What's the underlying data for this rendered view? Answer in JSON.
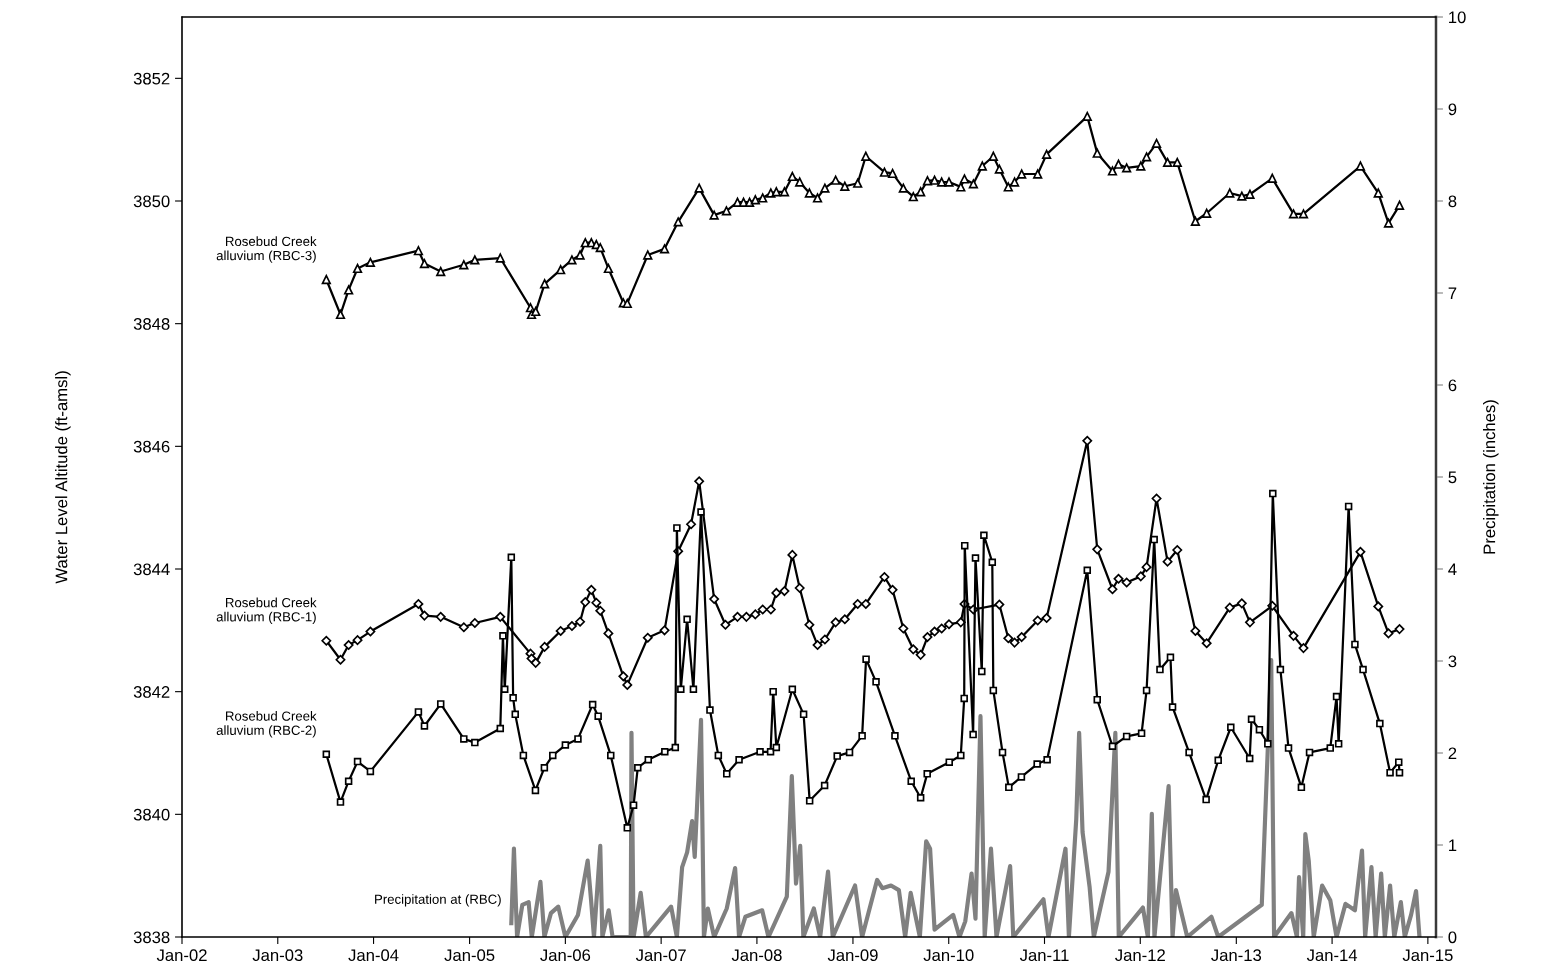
{
  "chart_data": {
    "type": "line",
    "ylabel": "Water Level Altitude (ft-amsl)",
    "y2label": "Precipitation (inches)",
    "xlim": [
      "2002-01-01",
      "2015-02-01"
    ],
    "xticks": [
      {
        "value": "2002-01-01",
        "label": "Jan-02"
      },
      {
        "value": "2003-01-01",
        "label": "Jan-03"
      },
      {
        "value": "2004-01-01",
        "label": "Jan-04"
      },
      {
        "value": "2005-01-01",
        "label": "Jan-05"
      },
      {
        "value": "2006-01-01",
        "label": "Jan-06"
      },
      {
        "value": "2007-01-01",
        "label": "Jan-07"
      },
      {
        "value": "2008-01-01",
        "label": "Jan-08"
      },
      {
        "value": "2009-01-01",
        "label": "Jan-09"
      },
      {
        "value": "2010-01-01",
        "label": "Jan-10"
      },
      {
        "value": "2011-01-01",
        "label": "Jan-11"
      },
      {
        "value": "2012-01-01",
        "label": "Jan-12"
      },
      {
        "value": "2013-01-01",
        "label": "Jan-13"
      },
      {
        "value": "2014-01-01",
        "label": "Jan-14"
      },
      {
        "value": "2015-01-01",
        "label": "Jan-15"
      }
    ],
    "ylim": [
      3838,
      3853
    ],
    "yticks": [
      3838,
      3840,
      3842,
      3844,
      3846,
      3848,
      3850,
      3852
    ],
    "y2lim": [
      0,
      10
    ],
    "y2ticks": [
      0,
      1,
      2,
      3,
      4,
      5,
      6,
      7,
      8,
      9,
      10
    ],
    "grid": false,
    "legend": false,
    "line_style": "solid",
    "series": [
      {
        "name": "Rosebud Creek alluvium (RBC-3)",
        "color": "#000000",
        "marker": "triangle",
        "x": [
          "2003-07-05",
          "2003-08-28",
          "2003-09-28",
          "2003-11-01",
          "2003-12-20",
          "2004-06-20",
          "2004-07-13",
          "2004-09-13",
          "2004-12-10",
          "2005-01-21",
          "2005-04-28",
          "2005-08-21",
          "2005-08-25",
          "2005-09-10",
          "2005-10-14",
          "2005-12-14",
          "2006-01-26",
          "2006-02-26",
          "2006-03-18",
          "2006-04-10",
          "2006-04-29",
          "2006-05-14",
          "2006-06-14",
          "2006-08-10",
          "2006-08-25",
          "2006-11-11",
          "2007-01-14",
          "2007-03-07",
          "2007-05-26",
          "2007-07-22",
          "2007-09-07",
          "2007-10-19",
          "2007-11-11",
          "2007-12-04",
          "2007-12-26",
          "2008-01-23",
          "2008-02-23",
          "2008-03-15",
          "2008-04-15",
          "2008-05-15",
          "2008-06-12",
          "2008-07-19",
          "2008-08-19",
          "2008-09-16",
          "2008-10-27",
          "2008-12-01",
          "2009-01-19",
          "2009-02-19",
          "2009-05-01",
          "2009-06-01",
          "2009-07-12",
          "2009-08-19",
          "2009-09-16",
          "2009-10-12",
          "2009-11-08",
          "2009-12-05",
          "2010-01-02",
          "2010-02-16",
          "2010-03-02",
          "2010-04-05",
          "2010-05-09",
          "2010-06-20",
          "2010-07-13",
          "2010-08-16",
          "2010-09-09",
          "2010-10-06",
          "2010-12-06",
          "2011-01-09",
          "2011-06-13",
          "2011-07-21",
          "2011-09-17",
          "2011-10-10",
          "2011-11-10",
          "2012-01-03",
          "2012-01-25",
          "2012-03-03",
          "2012-04-14",
          "2012-05-21",
          "2012-07-29",
          "2012-09-10",
          "2012-12-07",
          "2013-01-22",
          "2013-02-22",
          "2013-05-18",
          "2013-08-07",
          "2013-09-14",
          "2014-04-19",
          "2014-06-26",
          "2014-08-04",
          "2014-09-15"
        ],
        "values": [
          3848.72,
          3848.15,
          3848.55,
          3848.9,
          3849.0,
          3849.19,
          3848.98,
          3848.85,
          3848.96,
          3849.04,
          3849.07,
          3848.26,
          3848.15,
          3848.2,
          3848.65,
          3848.88,
          3849.04,
          3849.12,
          3849.32,
          3849.32,
          3849.29,
          3849.24,
          3848.9,
          3848.34,
          3848.33,
          3849.12,
          3849.22,
          3849.66,
          3850.21,
          3849.77,
          3849.84,
          3849.98,
          3849.98,
          3849.98,
          3850.02,
          3850.05,
          3850.13,
          3850.15,
          3850.15,
          3850.4,
          3850.31,
          3850.13,
          3850.05,
          3850.21,
          3850.34,
          3850.24,
          3850.29,
          3850.73,
          3850.47,
          3850.45,
          3850.21,
          3850.07,
          3850.15,
          3850.33,
          3850.34,
          3850.31,
          3850.31,
          3850.23,
          3850.36,
          3850.28,
          3850.57,
          3850.73,
          3850.52,
          3850.23,
          3850.31,
          3850.44,
          3850.44,
          3850.76,
          3851.38,
          3850.78,
          3850.49,
          3850.6,
          3850.54,
          3850.57,
          3850.72,
          3850.94,
          3850.63,
          3850.63,
          3849.67,
          3849.8,
          3850.13,
          3850.08,
          3850.11,
          3850.37,
          3849.79,
          3849.79,
          3850.57,
          3850.13,
          3849.64,
          3849.93
        ]
      },
      {
        "name": "Rosebud Creek alluvium (RBC-1)",
        "color": "#000000",
        "marker": "diamond",
        "x": [
          "2003-07-05",
          "2003-08-28",
          "2003-09-28",
          "2003-11-01",
          "2003-12-20",
          "2004-06-20",
          "2004-07-13",
          "2004-09-13",
          "2004-12-10",
          "2005-01-21",
          "2005-04-28",
          "2005-08-21",
          "2005-08-25",
          "2005-09-10",
          "2005-10-14",
          "2005-12-14",
          "2006-01-26",
          "2006-02-26",
          "2006-03-18",
          "2006-04-10",
          "2006-04-29",
          "2006-05-14",
          "2006-06-14",
          "2006-08-10",
          "2006-08-25",
          "2006-11-11",
          "2007-01-14",
          "2007-03-07",
          "2007-04-25",
          "2007-05-26",
          "2007-07-22",
          "2007-09-03",
          "2007-10-19",
          "2007-11-22",
          "2007-12-26",
          "2008-01-23",
          "2008-02-23",
          "2008-03-15",
          "2008-04-15",
          "2008-05-15",
          "2008-06-12",
          "2008-07-19",
          "2008-08-19",
          "2008-09-16",
          "2008-10-27",
          "2008-12-01",
          "2009-01-19",
          "2009-02-19",
          "2009-05-01",
          "2009-06-01",
          "2009-07-12",
          "2009-08-19",
          "2009-09-16",
          "2009-10-12",
          "2009-11-08",
          "2009-12-05",
          "2010-01-02",
          "2010-02-16",
          "2010-03-02",
          "2010-04-05",
          "2010-07-13",
          "2010-08-16",
          "2010-09-09",
          "2010-10-06",
          "2010-12-06",
          "2011-01-09",
          "2011-06-13",
          "2011-07-21",
          "2011-09-17",
          "2011-10-10",
          "2011-11-10",
          "2012-01-03",
          "2012-01-25",
          "2012-03-03",
          "2012-04-14",
          "2012-05-21",
          "2012-07-29",
          "2012-09-10",
          "2012-12-07",
          "2013-01-22",
          "2013-02-22",
          "2013-05-18",
          "2013-08-07",
          "2013-09-14",
          "2014-04-19",
          "2014-06-26",
          "2014-08-04",
          "2014-09-15"
        ],
        "values": [
          3842.83,
          3842.52,
          3842.76,
          3842.84,
          3842.98,
          3843.43,
          3843.24,
          3843.22,
          3843.05,
          3843.12,
          3843.22,
          3842.62,
          3842.54,
          3842.47,
          3842.73,
          3842.99,
          3843.07,
          3843.14,
          3843.46,
          3843.66,
          3843.45,
          3843.32,
          3842.95,
          3842.25,
          3842.11,
          3842.88,
          3843.0,
          3844.29,
          3844.73,
          3845.43,
          3843.51,
          3843.09,
          3843.22,
          3843.22,
          3843.26,
          3843.34,
          3843.34,
          3843.61,
          3843.64,
          3844.23,
          3843.69,
          3843.09,
          3842.76,
          3842.85,
          3843.13,
          3843.18,
          3843.43,
          3843.43,
          3843.87,
          3843.66,
          3843.03,
          3842.69,
          3842.6,
          3842.89,
          3842.98,
          3843.03,
          3843.1,
          3843.13,
          3843.43,
          3843.34,
          3843.42,
          3842.87,
          3842.8,
          3842.89,
          3843.16,
          3843.2,
          3846.09,
          3844.32,
          3843.67,
          3843.84,
          3843.78,
          3843.88,
          3844.03,
          3845.15,
          3844.12,
          3844.31,
          3842.99,
          3842.79,
          3843.37,
          3843.44,
          3843.13,
          3843.4,
          3842.91,
          3842.71,
          3844.28,
          3843.39,
          3842.95,
          3843.02
        ]
      },
      {
        "name": "Rosebud Creek alluvium (RBC-2)",
        "color": "#000000",
        "marker": "square",
        "x": [
          "2003-07-05",
          "2003-08-28",
          "2003-09-28",
          "2003-11-01",
          "2003-12-20",
          "2004-06-20",
          "2004-07-13",
          "2004-09-13",
          "2004-12-10",
          "2005-01-21",
          "2005-04-28",
          "2005-05-08",
          "2005-05-15",
          "2005-06-09",
          "2005-06-16",
          "2005-06-24",
          "2005-07-25",
          "2005-09-09",
          "2005-10-13",
          "2005-11-14",
          "2006-01-01",
          "2006-02-18",
          "2006-04-15",
          "2006-05-06",
          "2006-06-23",
          "2006-08-25",
          "2006-09-18",
          "2006-10-04",
          "2006-11-13",
          "2007-01-15",
          "2007-02-24",
          "2007-03-02",
          "2007-03-17",
          "2007-04-10",
          "2007-05-04",
          "2007-06-02",
          "2007-07-06",
          "2007-08-07",
          "2007-09-08",
          "2007-10-25",
          "2008-01-13",
          "2008-02-22",
          "2008-03-03",
          "2008-03-15",
          "2008-05-15",
          "2008-06-27",
          "2008-07-20",
          "2008-09-15",
          "2008-11-02",
          "2008-12-19",
          "2009-02-05",
          "2009-02-20",
          "2009-03-30",
          "2009-06-10",
          "2009-08-11",
          "2009-09-16",
          "2009-10-11",
          "2010-01-03",
          "2010-02-16",
          "2010-03-01",
          "2010-03-03",
          "2010-04-04",
          "2010-04-13",
          "2010-05-07",
          "2010-05-15",
          "2010-06-16",
          "2010-06-20",
          "2010-07-25",
          "2010-08-18",
          "2010-10-05",
          "2010-12-04",
          "2011-01-11",
          "2011-06-13",
          "2011-07-21",
          "2011-09-17",
          "2011-11-10",
          "2012-01-06",
          "2012-01-25",
          "2012-02-23",
          "2012-03-16",
          "2012-04-25",
          "2012-05-03",
          "2012-07-05",
          "2012-09-08",
          "2012-10-24",
          "2012-12-11",
          "2013-02-21",
          "2013-02-28",
          "2013-03-30",
          "2013-05-01",
          "2013-05-20",
          "2013-06-18",
          "2013-07-19",
          "2013-09-06",
          "2013-10-07",
          "2013-12-25",
          "2014-01-18",
          "2014-01-26",
          "2014-03-05",
          "2014-03-29",
          "2014-04-29",
          "2014-07-02",
          "2014-08-10",
          "2014-09-12",
          "2014-09-15"
        ],
        "values": [
          3840.98,
          3840.2,
          3840.54,
          3840.86,
          3840.7,
          3841.67,
          3841.44,
          3841.8,
          3841.23,
          3841.17,
          3841.4,
          3842.91,
          3842.04,
          3844.19,
          3841.9,
          3841.63,
          3840.96,
          3840.39,
          3840.76,
          3840.96,
          3841.13,
          3841.23,
          3841.79,
          3841.6,
          3840.96,
          3839.78,
          3840.15,
          3840.76,
          3840.89,
          3841.02,
          3841.09,
          3844.67,
          3842.04,
          3843.18,
          3842.04,
          3844.93,
          3841.7,
          3840.96,
          3840.66,
          3840.89,
          3841.02,
          3841.02,
          3842.0,
          3841.09,
          3842.04,
          3841.63,
          3840.22,
          3840.47,
          3840.95,
          3841.01,
          3841.28,
          3842.53,
          3842.16,
          3841.28,
          3840.54,
          3840.27,
          3840.66,
          3840.85,
          3840.96,
          3841.89,
          3844.38,
          3841.3,
          3844.18,
          3842.33,
          3844.55,
          3844.11,
          3842.02,
          3841.01,
          3840.44,
          3840.61,
          3840.82,
          3840.89,
          3843.98,
          3841.87,
          3841.11,
          3841.27,
          3841.32,
          3842.02,
          3844.48,
          3842.36,
          3842.56,
          3841.75,
          3841.01,
          3840.24,
          3840.88,
          3841.42,
          3840.91,
          3841.55,
          3841.38,
          3841.15,
          3845.23,
          3842.36,
          3841.08,
          3840.44,
          3841.01,
          3841.08,
          3841.92,
          3841.15,
          3845.02,
          3842.77,
          3842.36,
          3841.48,
          3840.68,
          3840.85,
          3840.68
        ]
      },
      {
        "name": "Precipitation at (RBC)",
        "color": "#808080",
        "marker": "none",
        "axis": "y2",
        "x": [
          "2005-06-09",
          "2005-06-19",
          "2005-07-01",
          "2005-07-21",
          "2005-08-14",
          "2005-08-26",
          "2005-09-28",
          "2005-10-13",
          "2005-11-07",
          "2005-12-05",
          "2006-01-01",
          "2006-02-18",
          "2006-03-27",
          "2006-04-09",
          "2006-04-20",
          "2006-05-14",
          "2006-05-22",
          "2006-06-15",
          "2006-06-30",
          "2006-09-07",
          "2006-09-10",
          "2006-09-18",
          "2006-10-15",
          "2006-11-04",
          "2007-02-08",
          "2007-03-02",
          "2007-03-22",
          "2007-04-10",
          "2007-04-29",
          "2007-05-09",
          "2007-06-02",
          "2007-06-13",
          "2007-06-28",
          "2007-07-22",
          "2007-09-08",
          "2007-10-10",
          "2007-10-25",
          "2007-11-18",
          "2008-01-21",
          "2008-02-14",
          "2008-04-24",
          "2008-05-13",
          "2008-05-29",
          "2008-06-14",
          "2008-06-26",
          "2008-08-05",
          "2008-08-29",
          "2008-09-28",
          "2008-10-16",
          "2009-01-09",
          "2009-02-05",
          "2009-04-03",
          "2009-04-23",
          "2009-05-26",
          "2009-06-25",
          "2009-07-19",
          "2009-08-09",
          "2009-09-13",
          "2009-10-07",
          "2009-10-22",
          "2009-11-08",
          "2009-12-09",
          "2010-01-18",
          "2010-02-11",
          "2010-03-05",
          "2010-03-29",
          "2010-04-13",
          "2010-05-02",
          "2010-05-18",
          "2010-06-11",
          "2010-07-02",
          "2010-08-23",
          "2010-09-04",
          "2010-12-28",
          "2011-01-16",
          "2011-03-22",
          "2011-04-04",
          "2011-05-02",
          "2011-05-13",
          "2011-05-26",
          "2011-06-22",
          "2011-07-08",
          "2011-09-02",
          "2011-09-28",
          "2011-10-11",
          "2012-01-11",
          "2012-01-30",
          "2012-02-14",
          "2012-02-24",
          "2012-04-18",
          "2012-05-03",
          "2012-05-16",
          "2012-06-28",
          "2012-09-28",
          "2012-10-24",
          "2013-04-08",
          "2013-05-14",
          "2013-05-25",
          "2013-07-30",
          "2013-08-20",
          "2013-08-28",
          "2013-09-13",
          "2013-09-21",
          "2013-10-04",
          "2013-10-23",
          "2013-11-24",
          "2013-12-25",
          "2014-01-18",
          "2014-02-21",
          "2014-03-29",
          "2014-04-25",
          "2014-05-07",
          "2014-05-31",
          "2014-06-16",
          "2014-07-07",
          "2014-07-21",
          "2014-08-10",
          "2014-08-26",
          "2014-09-20",
          "2014-10-05",
          "2014-10-29",
          "2014-11-17",
          "2014-11-30"
        ],
        "values": [
          0.15,
          0.96,
          0,
          0.35,
          0.38,
          0,
          0.6,
          0,
          0.26,
          0.33,
          0,
          0.24,
          0.83,
          0.4,
          0,
          0.99,
          0,
          0.29,
          0,
          0,
          2.22,
          0,
          0.48,
          0,
          0.33,
          0,
          0.76,
          0.92,
          1.26,
          0.87,
          2.36,
          0,
          0.31,
          0,
          0.31,
          0.75,
          0,
          0.22,
          0.29,
          0,
          0.44,
          1.75,
          0.58,
          0.99,
          0,
          0.31,
          0,
          0.71,
          0,
          0.56,
          0,
          0.62,
          0.53,
          0.56,
          0.51,
          0,
          0.48,
          0,
          1.04,
          0.96,
          0.08,
          0.15,
          0.24,
          0,
          0.17,
          0.69,
          0.2,
          2.4,
          0,
          0.96,
          0,
          0.77,
          0,
          0.41,
          0,
          0.96,
          0,
          1.28,
          2.22,
          1.14,
          0.54,
          0,
          0.71,
          2.22,
          0,
          0.32,
          0,
          1.34,
          0,
          1.64,
          0,
          0.51,
          0,
          0.22,
          0,
          0.35,
          3.01,
          0,
          0.26,
          0,
          0.65,
          0,
          1.12,
          0.83,
          0,
          0.56,
          0.4,
          0,
          0.36,
          0.29,
          0.94,
          0,
          0.76,
          0,
          0.69,
          0,
          0.56,
          0,
          0.38,
          0,
          0.24,
          0.5,
          0
        ]
      }
    ]
  }
}
